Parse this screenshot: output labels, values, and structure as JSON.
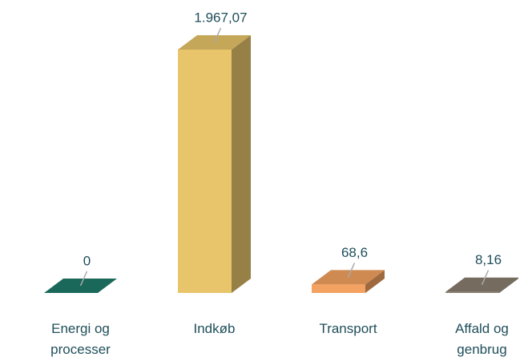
{
  "chart_data": {
    "type": "bar3d",
    "categories": [
      "Energi og processer",
      "Indkøb",
      "Transport",
      "Affald og genbrug"
    ],
    "values": [
      0,
      1967.07,
      68.6,
      8.16
    ],
    "value_labels": [
      "0",
      "1.967,07",
      "68,6",
      "8,16"
    ],
    "colors": [
      "#1f7a6a",
      "#e8c56a",
      "#f4a261",
      "#8a7f70"
    ]
  }
}
